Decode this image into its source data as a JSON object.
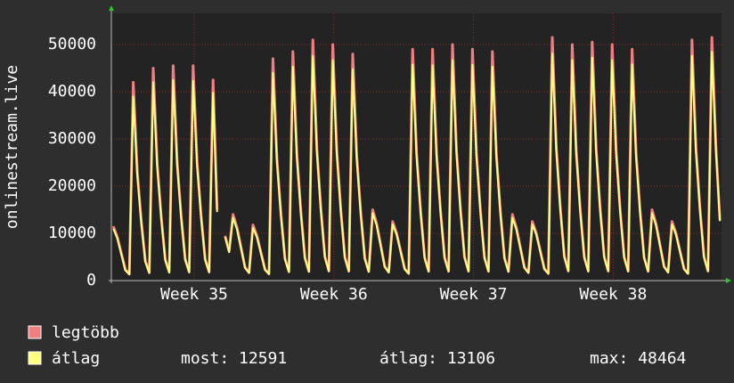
{
  "chart_data": {
    "type": "line",
    "y_label": "onlinestream.live",
    "x": [
      0.1,
      0.3,
      0.5,
      0.7,
      0.9,
      1.1,
      1.3,
      1.5,
      1.7,
      1.9,
      2.1,
      2.3,
      2.5,
      2.7,
      2.9,
      3.1,
      3.3,
      3.5,
      3.7,
      3.9,
      4.1,
      4.3,
      4.5,
      4.7,
      4.9,
      5.1,
      5.3,
      5.5,
      5.7,
      5.9,
      6.1,
      6.3,
      6.5,
      6.7,
      6.9,
      7.1,
      7.3,
      7.5,
      7.7,
      7.9,
      8.1,
      8.3,
      8.5,
      8.7,
      8.9,
      9.1,
      9.3,
      9.5,
      9.7,
      9.9,
      10.1,
      10.3,
      10.5,
      10.7,
      10.9,
      11.1,
      11.3,
      11.5,
      11.7,
      11.9,
      12.1,
      12.3,
      12.5,
      12.7,
      12.9,
      13.1,
      13.3,
      13.5,
      13.7,
      13.9,
      14.1,
      14.3,
      14.5,
      14.7,
      14.9,
      15.1,
      15.3,
      15.5,
      15.7,
      15.9,
      16.1,
      16.3,
      16.5,
      16.7,
      16.9,
      17.1,
      17.3,
      17.5,
      17.7,
      17.9,
      18.1,
      18.3,
      18.5,
      18.7,
      18.9,
      19.1,
      19.3,
      19.5,
      19.7,
      19.9,
      20.1,
      20.3,
      20.5,
      20.7,
      20.9,
      21.1,
      21.3,
      21.5,
      21.7,
      21.9,
      22.1,
      22.3,
      22.5,
      22.7,
      22.9,
      23.1,
      23.3,
      23.5,
      23.7,
      23.9,
      24.1,
      24.3,
      24.5,
      24.7,
      24.9,
      25.1,
      25.3,
      25.5,
      25.7,
      25.9,
      26.1,
      26.3,
      26.5,
      26.7,
      26.9,
      27.1,
      27.3,
      27.5,
      27.7,
      27.9,
      28.1,
      28.3,
      28.5,
      28.7,
      28.9,
      29.1,
      29.3,
      29.5,
      29.7,
      29.9,
      30.1,
      30.3,
      30.5
    ],
    "series": [
      {
        "name": "legtöbb",
        "color": "#f08080",
        "values": [
          11500,
          9200,
          5750,
          2300,
          1380,
          42000,
          23100,
          12600,
          4200,
          1680,
          45000,
          24750,
          13500,
          4500,
          1800,
          45500,
          25000,
          13650,
          4550,
          1820,
          45500,
          25000,
          13650,
          4550,
          1820,
          42500,
          15000,
          null,
          9500,
          6200,
          14000,
          11200,
          7000,
          2800,
          1680,
          11800,
          9440,
          5900,
          2360,
          1420,
          47000,
          25850,
          14100,
          4700,
          1880,
          48500,
          26700,
          14550,
          4850,
          1940,
          51000,
          28050,
          15300,
          5100,
          2040,
          50000,
          27500,
          15000,
          5000,
          2000,
          48000,
          26400,
          14400,
          4800,
          1920,
          15000,
          12000,
          7500,
          3000,
          1800,
          12500,
          10000,
          6250,
          2500,
          1500,
          49000,
          26950,
          14700,
          4900,
          1960,
          49000,
          26950,
          14700,
          4900,
          1960,
          50000,
          27500,
          15000,
          5000,
          2000,
          49000,
          26950,
          14700,
          4900,
          1960,
          48500,
          26700,
          14550,
          4850,
          1940,
          14000,
          11200,
          7000,
          2800,
          1680,
          12500,
          10000,
          6250,
          2500,
          1500,
          51500,
          28300,
          15450,
          5150,
          2060,
          50000,
          27500,
          15000,
          5000,
          2000,
          50500,
          27800,
          15150,
          5050,
          2020,
          50000,
          27500,
          15000,
          5000,
          2000,
          49000,
          26950,
          14700,
          4900,
          1960,
          15000,
          12000,
          7500,
          3000,
          1800,
          12500,
          10000,
          6250,
          2500,
          1500,
          51000,
          28050,
          15300,
          5100,
          2040,
          51500,
          28300,
          12800
        ]
      },
      {
        "name": "átlag",
        "color": "#ffff80",
        "values": [
          11000,
          8900,
          5600,
          2200,
          1300,
          39000,
          22400,
          12200,
          4000,
          1600,
          42000,
          24000,
          13100,
          4300,
          1700,
          42500,
          24300,
          13200,
          4400,
          1750,
          42300,
          24200,
          13200,
          4400,
          1750,
          39800,
          14500,
          null,
          9200,
          6000,
          13300,
          10800,
          6800,
          2700,
          1600,
          11200,
          9100,
          5700,
          2300,
          1350,
          44000,
          25100,
          13700,
          4500,
          1800,
          45300,
          25900,
          14100,
          4700,
          1850,
          47600,
          27200,
          14800,
          4900,
          1950,
          46700,
          26700,
          14600,
          4850,
          1900,
          44800,
          25600,
          14000,
          4650,
          1850,
          14300,
          11600,
          7300,
          2900,
          1700,
          11900,
          9700,
          6100,
          2400,
          1450,
          45800,
          26100,
          14300,
          4750,
          1900,
          45600,
          26100,
          14300,
          4750,
          1900,
          46700,
          26700,
          14600,
          4850,
          1900,
          45700,
          26100,
          14300,
          4750,
          1900,
          45300,
          25900,
          14100,
          4700,
          1850,
          13300,
          10800,
          6800,
          2700,
          1600,
          11900,
          9700,
          6100,
          2400,
          1450,
          48100,
          27500,
          15000,
          5000,
          1950,
          46700,
          26700,
          14600,
          4850,
          1900,
          47200,
          27000,
          14700,
          4900,
          1950,
          46700,
          26700,
          14600,
          4850,
          1900,
          45800,
          26100,
          14300,
          4750,
          1900,
          14300,
          11600,
          7300,
          2900,
          1700,
          11900,
          9700,
          6100,
          2400,
          1450,
          47600,
          27200,
          14800,
          4900,
          1950,
          48464,
          27500,
          12591
        ]
      }
    ],
    "xlim": [
      0,
      30.58
    ],
    "xticks": [
      {
        "value": 4.15,
        "label": "Week 35"
      },
      {
        "value": 11.15,
        "label": "Week 36"
      },
      {
        "value": 18.15,
        "label": "Week 37"
      },
      {
        "value": 25.15,
        "label": "Week 38"
      }
    ],
    "ylim": [
      0,
      56600
    ],
    "yticks": [
      0,
      10000,
      20000,
      30000,
      40000,
      50000
    ],
    "grid": true,
    "stats": [
      {
        "label": "most:",
        "value": 12591
      },
      {
        "label": "átlag:",
        "value": 13106
      },
      {
        "label": "max:",
        "value": 48464
      }
    ]
  }
}
